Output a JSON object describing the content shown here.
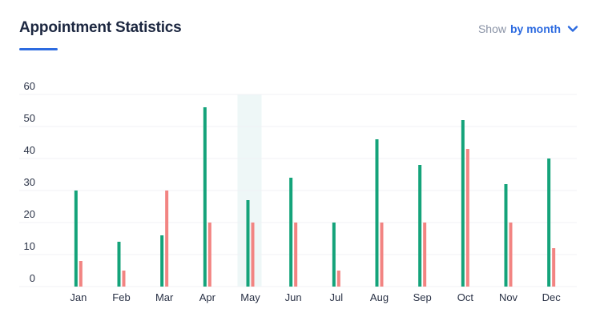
{
  "header": {
    "title": "Appointment Statistics",
    "show_label": "Show",
    "show_value": "by month"
  },
  "icons": {
    "dropdown": "chevron-down-icon"
  },
  "colors": {
    "series_a": "#14a37a",
    "series_b": "#f28482",
    "highlight": "#eef7f7",
    "accent": "#2d6be0",
    "grid": "#f0f2f5"
  },
  "chart_data": {
    "type": "bar",
    "categories": [
      "Jan",
      "Feb",
      "Mar",
      "Apr",
      "May",
      "Jun",
      "Jul",
      "Aug",
      "Sep",
      "Oct",
      "Nov",
      "Dec"
    ],
    "series": [
      {
        "values": [
          30,
          14,
          16,
          56,
          27,
          34,
          20,
          46,
          38,
          52,
          32,
          40
        ],
        "color": "#14a37a"
      },
      {
        "values": [
          8,
          5,
          30,
          20,
          20,
          20,
          5,
          20,
          20,
          43,
          20,
          12
        ],
        "color": "#f28482"
      }
    ],
    "yticks": [
      0,
      10,
      20,
      30,
      40,
      50,
      60
    ],
    "ylim": [
      0,
      60
    ],
    "highlighted_category": "May",
    "grid": true,
    "legend": "none",
    "title": "",
    "xlabel": "",
    "ylabel": ""
  }
}
